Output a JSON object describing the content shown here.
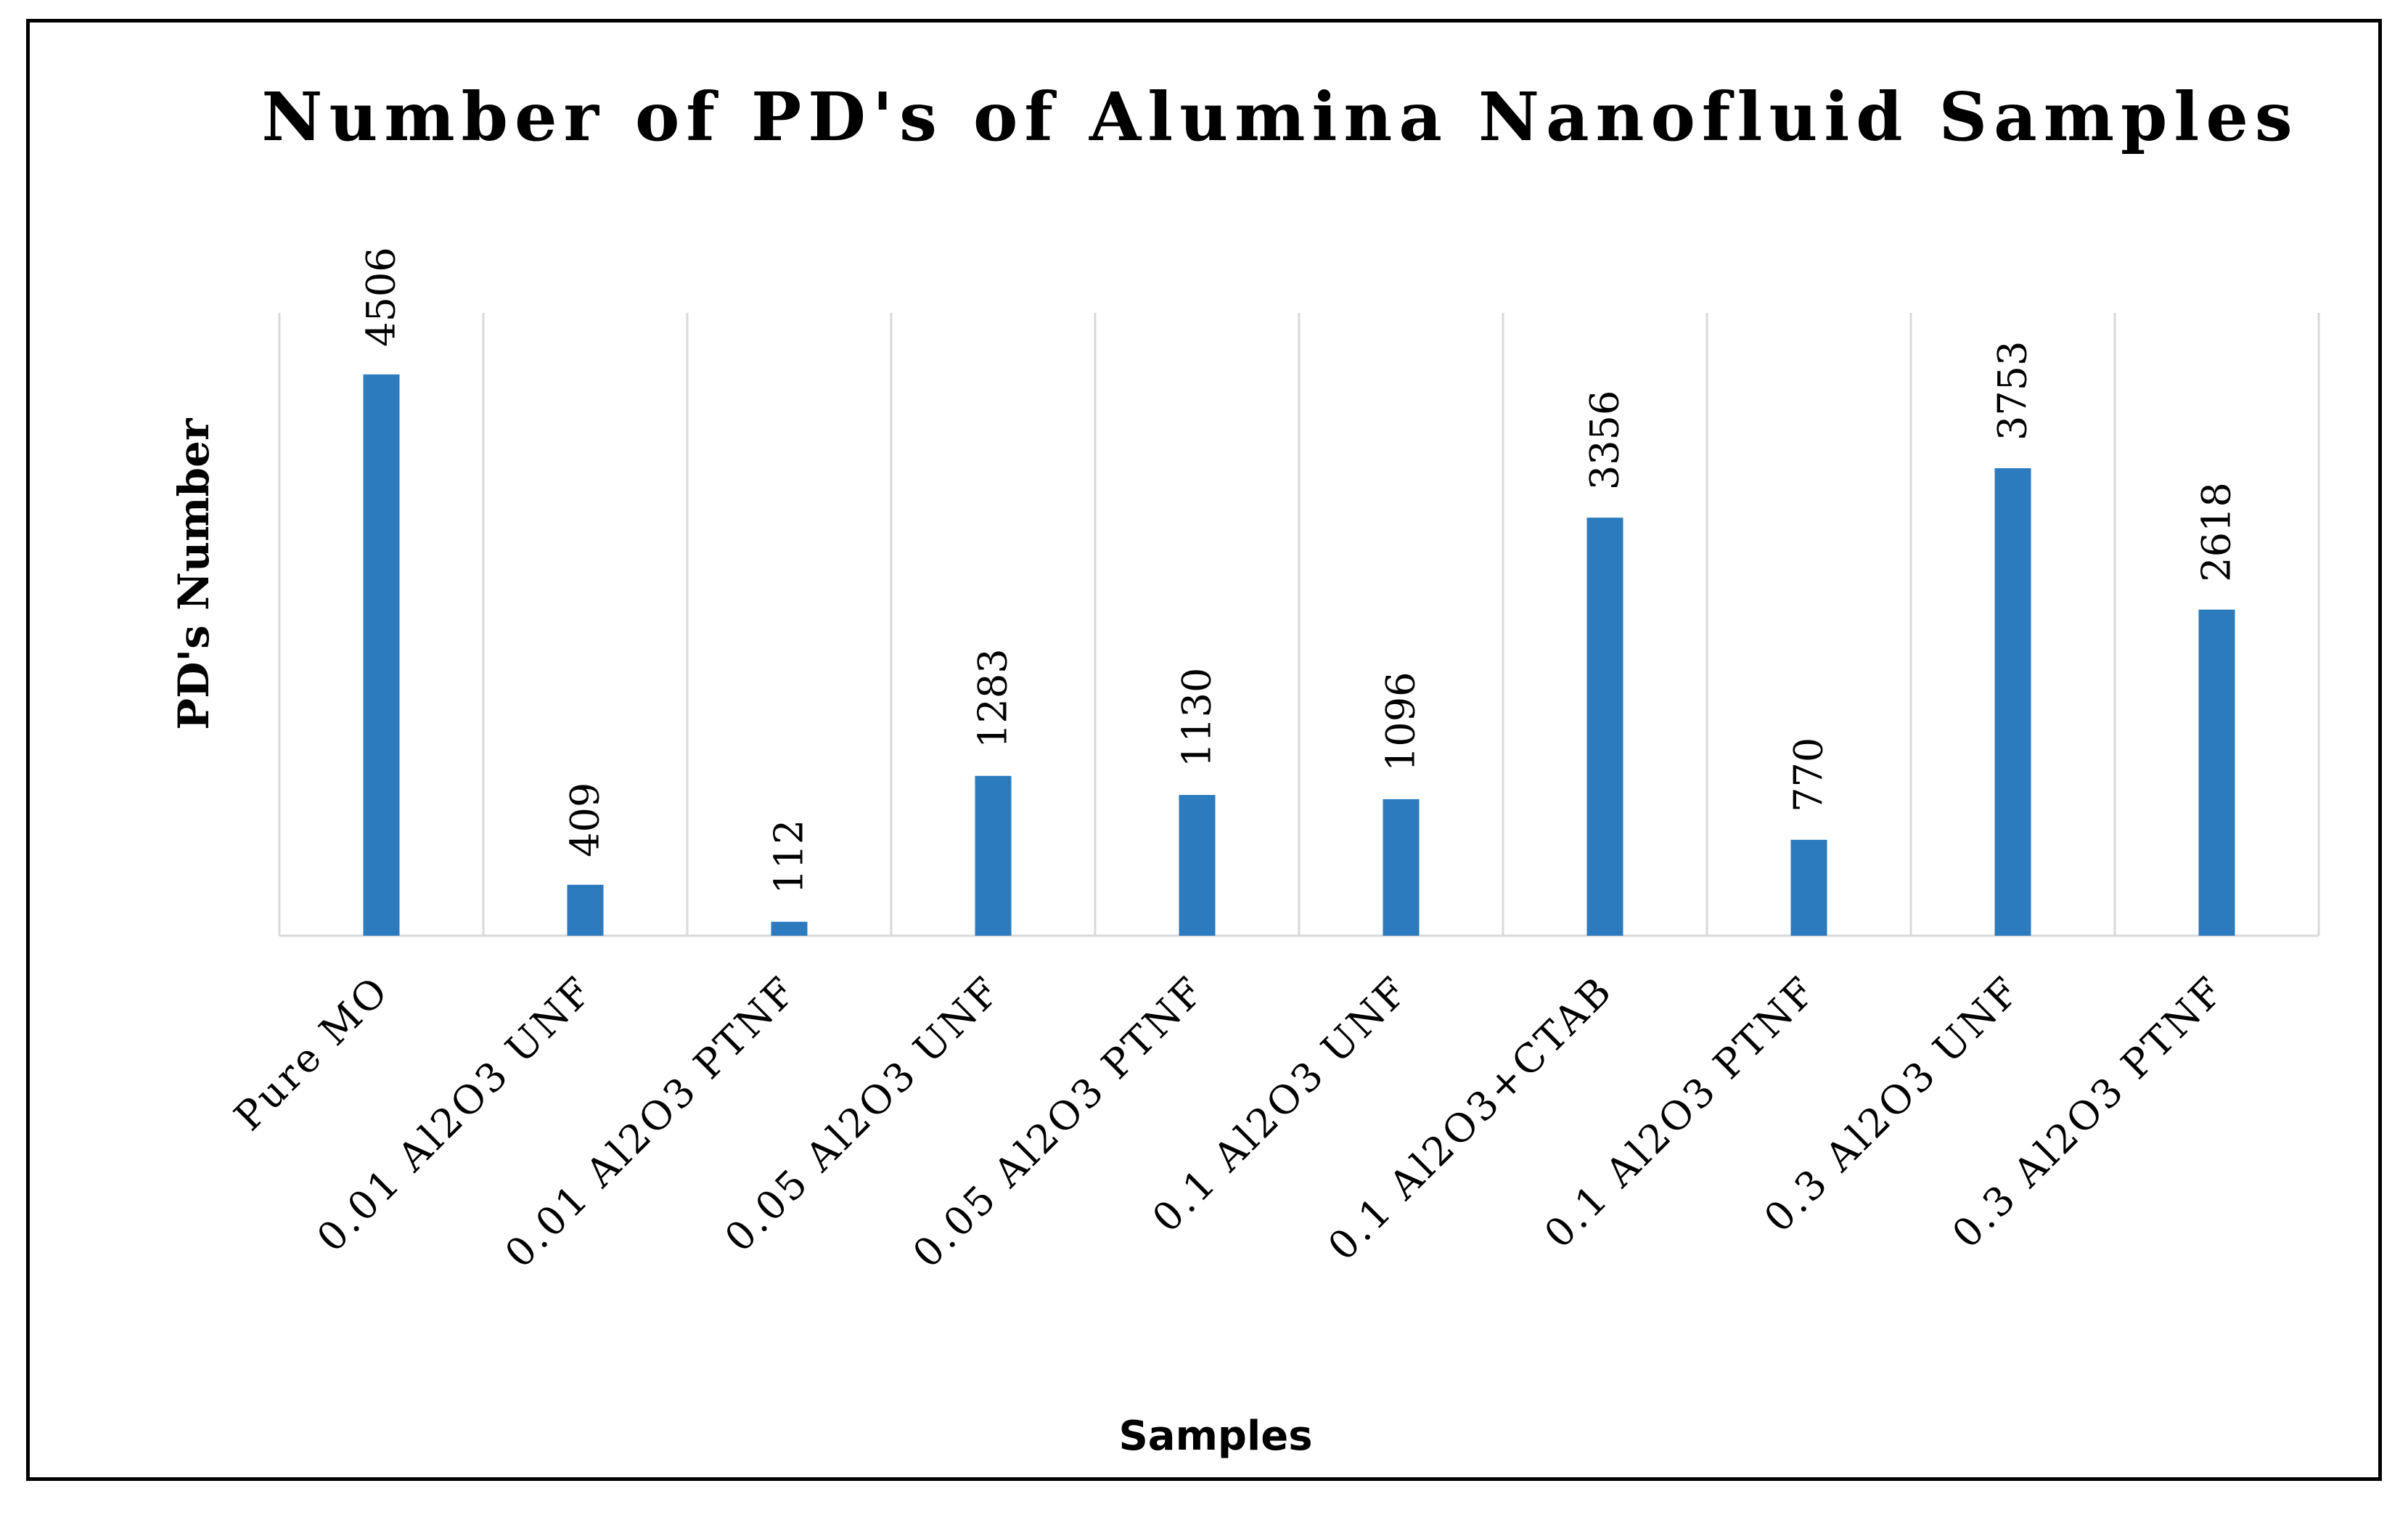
{
  "chart_data": {
    "type": "bar",
    "title": "Number of PD's of Alumina Nanofluid Samples",
    "xlabel": "Samples",
    "ylabel": "PD's Number",
    "categories": [
      "Pure MO",
      "0.01 Al2O3 UNF",
      "0.01 Al2O3 PTNF",
      "0.05 Al2O3 UNF",
      "0.05 Al2O3 PTNF",
      "0.1 Al2O3 UNF",
      "0.1 Al2O3+CTAB",
      "0.1 Al2O3 PTNF",
      "0.3 Al2O3 UNF",
      "0.3 Al2O3 PTNF"
    ],
    "values": [
      4506,
      409,
      112,
      1283,
      1130,
      1096,
      3356,
      770,
      3753,
      2618
    ],
    "data_labels": [
      "4506",
      "409",
      "112",
      "1283",
      "1130",
      "1096",
      "3356",
      "770",
      "3753",
      "2618"
    ],
    "ylim": [
      0,
      5000
    ],
    "vertical_gridlines": true,
    "legend": "none",
    "bar_color": "#2B7BBE",
    "grid_color": "#D9D9D9"
  }
}
